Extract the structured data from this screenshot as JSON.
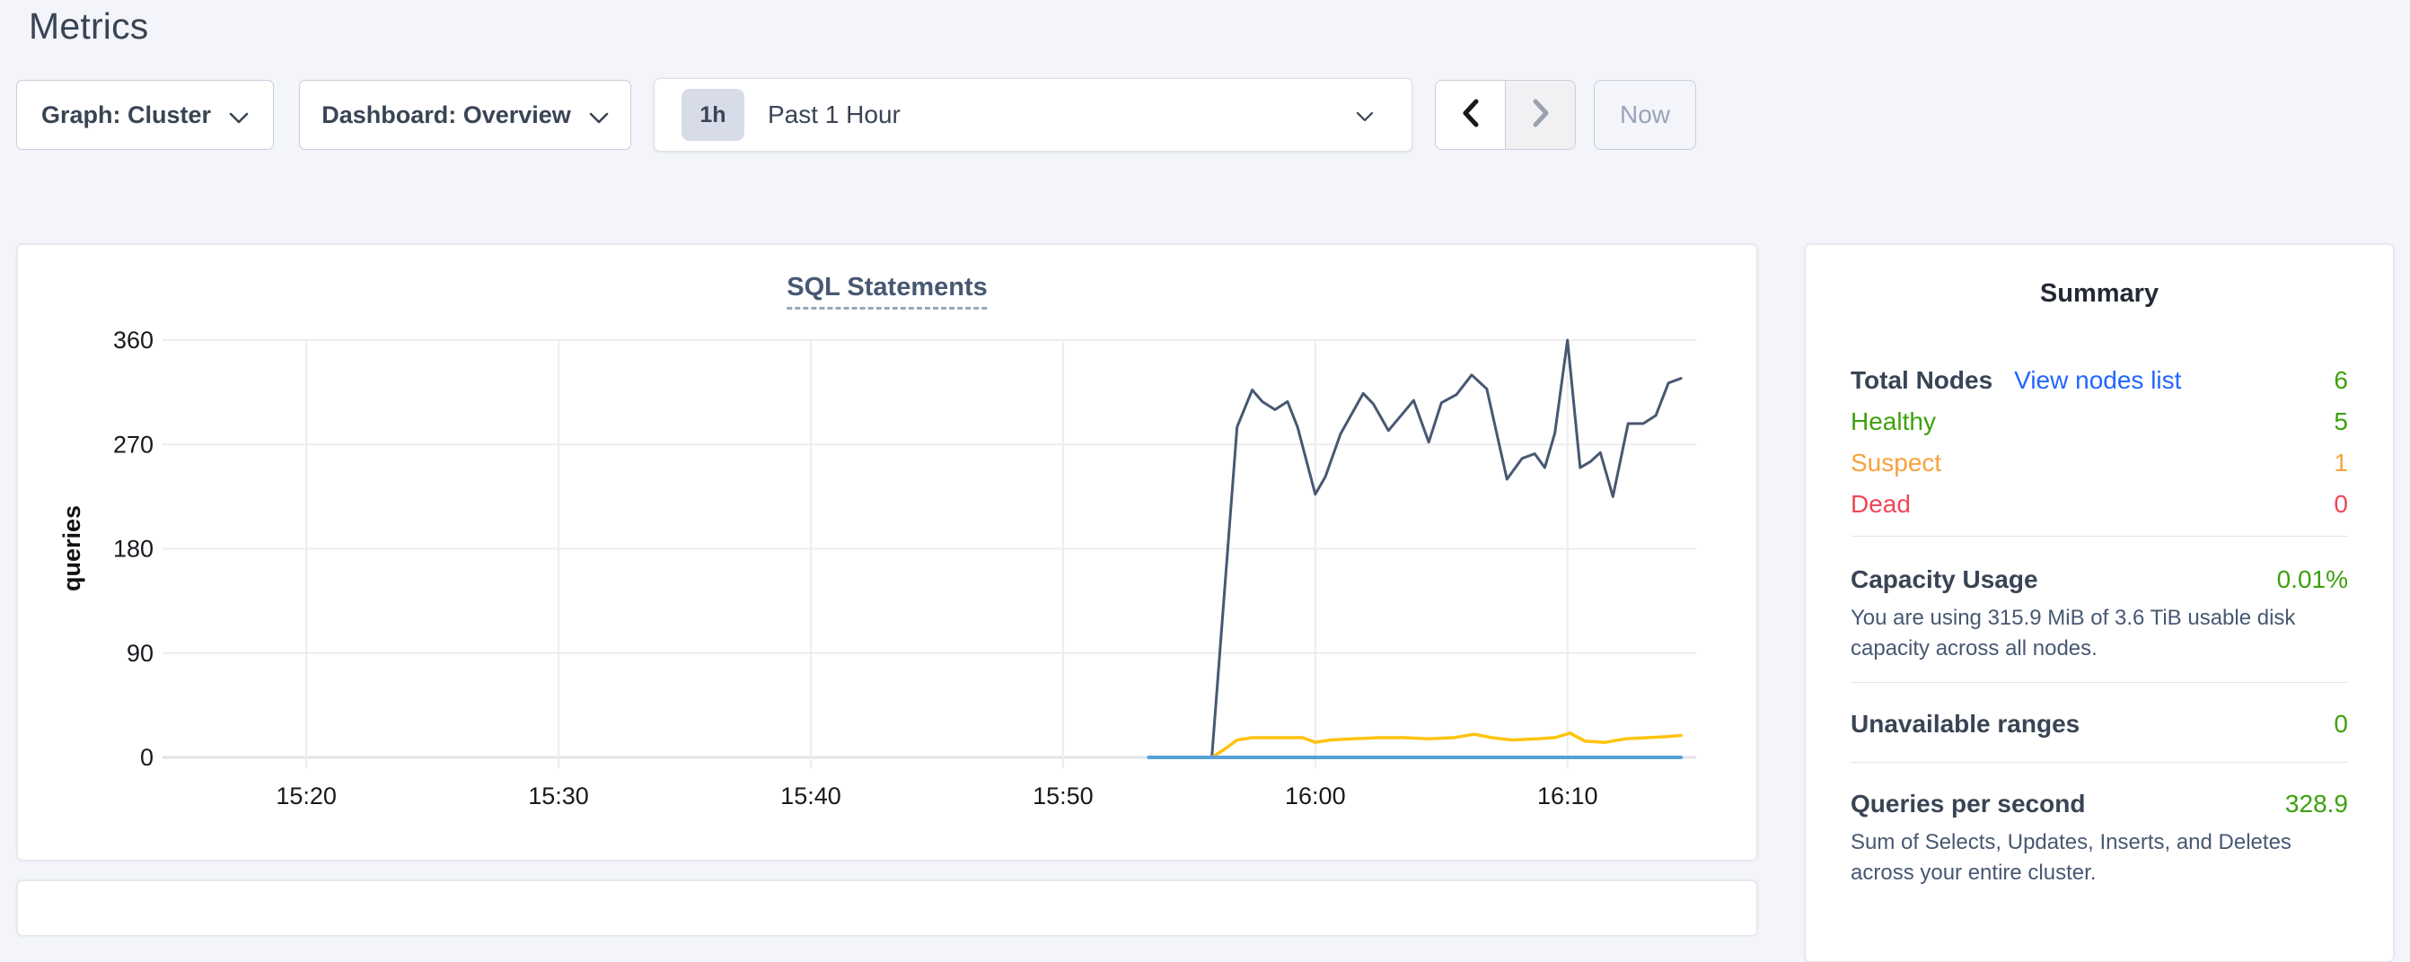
{
  "page": {
    "title": "Metrics"
  },
  "toolbar": {
    "graph_dropdown": {
      "label": "Graph: Cluster"
    },
    "dashboard_dropdown": {
      "label": "Dashboard: Overview"
    },
    "time_picker": {
      "badge": "1h",
      "label": "Past 1 Hour"
    },
    "prev_icon": "chevron-left",
    "next_icon": "chevron-right",
    "now_button": "Now"
  },
  "chart_data": {
    "type": "line",
    "title": "SQL Statements",
    "ylabel": "queries",
    "xlabel": "",
    "grid": true,
    "legend": "none",
    "ylim": [
      0,
      360
    ],
    "y_ticks": [
      0,
      90,
      180,
      270,
      360
    ],
    "x_ticks": [
      "15:20",
      "15:30",
      "15:40",
      "15:50",
      "16:00",
      "16:10"
    ],
    "x_tick_minutes": [
      0,
      10,
      20,
      30,
      40,
      50
    ],
    "xlim_minutes": [
      -5.7,
      55.1
    ],
    "series": [
      {
        "name": "series-navy",
        "color": "#475872",
        "width": 3,
        "points": [
          [
            33.4,
            0
          ],
          [
            35.9,
            0
          ],
          [
            36.9,
            285
          ],
          [
            37.5,
            317
          ],
          [
            37.9,
            307
          ],
          [
            38.4,
            300
          ],
          [
            38.9,
            307
          ],
          [
            39.3,
            285
          ],
          [
            40.0,
            227
          ],
          [
            40.4,
            242
          ],
          [
            41.0,
            279
          ],
          [
            41.9,
            314
          ],
          [
            42.3,
            305
          ],
          [
            42.9,
            282
          ],
          [
            43.9,
            308
          ],
          [
            44.5,
            272
          ],
          [
            45.0,
            306
          ],
          [
            45.6,
            313
          ],
          [
            46.2,
            330
          ],
          [
            46.8,
            318
          ],
          [
            47.6,
            240
          ],
          [
            48.2,
            258
          ],
          [
            48.7,
            262
          ],
          [
            49.1,
            250
          ],
          [
            49.5,
            280
          ],
          [
            50.0,
            360
          ],
          [
            50.5,
            250
          ],
          [
            50.9,
            255
          ],
          [
            51.3,
            263
          ],
          [
            51.8,
            225
          ],
          [
            52.4,
            288
          ],
          [
            53.0,
            288
          ],
          [
            53.5,
            295
          ],
          [
            54.0,
            323
          ],
          [
            54.5,
            327
          ]
        ]
      },
      {
        "name": "series-yellow",
        "color": "#ffc30e",
        "width": 3.5,
        "points": [
          [
            33.4,
            0
          ],
          [
            35.9,
            0
          ],
          [
            36.4,
            7
          ],
          [
            36.9,
            15
          ],
          [
            37.5,
            17
          ],
          [
            38.5,
            17
          ],
          [
            39.5,
            17
          ],
          [
            40.0,
            13
          ],
          [
            40.6,
            15
          ],
          [
            41.5,
            16
          ],
          [
            42.5,
            17
          ],
          [
            43.5,
            17
          ],
          [
            44.5,
            16
          ],
          [
            45.5,
            17
          ],
          [
            46.3,
            20
          ],
          [
            47.0,
            17
          ],
          [
            47.8,
            15
          ],
          [
            48.8,
            16
          ],
          [
            49.5,
            17
          ],
          [
            50.1,
            21
          ],
          [
            50.7,
            14
          ],
          [
            51.5,
            13
          ],
          [
            52.3,
            16
          ],
          [
            53.2,
            17
          ],
          [
            54.0,
            18
          ],
          [
            54.5,
            19
          ]
        ]
      },
      {
        "name": "series-blue",
        "color": "#57a1d6",
        "width": 4,
        "points": [
          [
            33.4,
            0
          ],
          [
            54.5,
            0
          ]
        ]
      }
    ]
  },
  "summary": {
    "title": "Summary",
    "nodes": {
      "label": "Total Nodes",
      "link": "View nodes list",
      "value": "6"
    },
    "statuses": [
      {
        "label": "Healthy",
        "value": "5",
        "color": "#3da10c"
      },
      {
        "label": "Suspect",
        "value": "1",
        "color": "#f7a23d"
      },
      {
        "label": "Dead",
        "value": "0",
        "color": "#f14655"
      }
    ],
    "capacity": {
      "label": "Capacity Usage",
      "value": "0.01%",
      "description": "You are using 315.9 MiB of 3.6 TiB usable disk capacity across all nodes."
    },
    "unavailable": {
      "label": "Unavailable ranges",
      "value": "0"
    },
    "qps": {
      "label": "Queries per second",
      "value": "328.9",
      "description": "Sum of Selects, Updates, Inserts, and Deletes across your entire cluster."
    }
  },
  "colors": {
    "page_bg": "#f4f5fa",
    "text_dark": "#394455",
    "link_blue": "#2265ff",
    "green": "#3da10c",
    "orange": "#f7a23d",
    "red": "#f14655",
    "gridline": "#ededf1"
  }
}
